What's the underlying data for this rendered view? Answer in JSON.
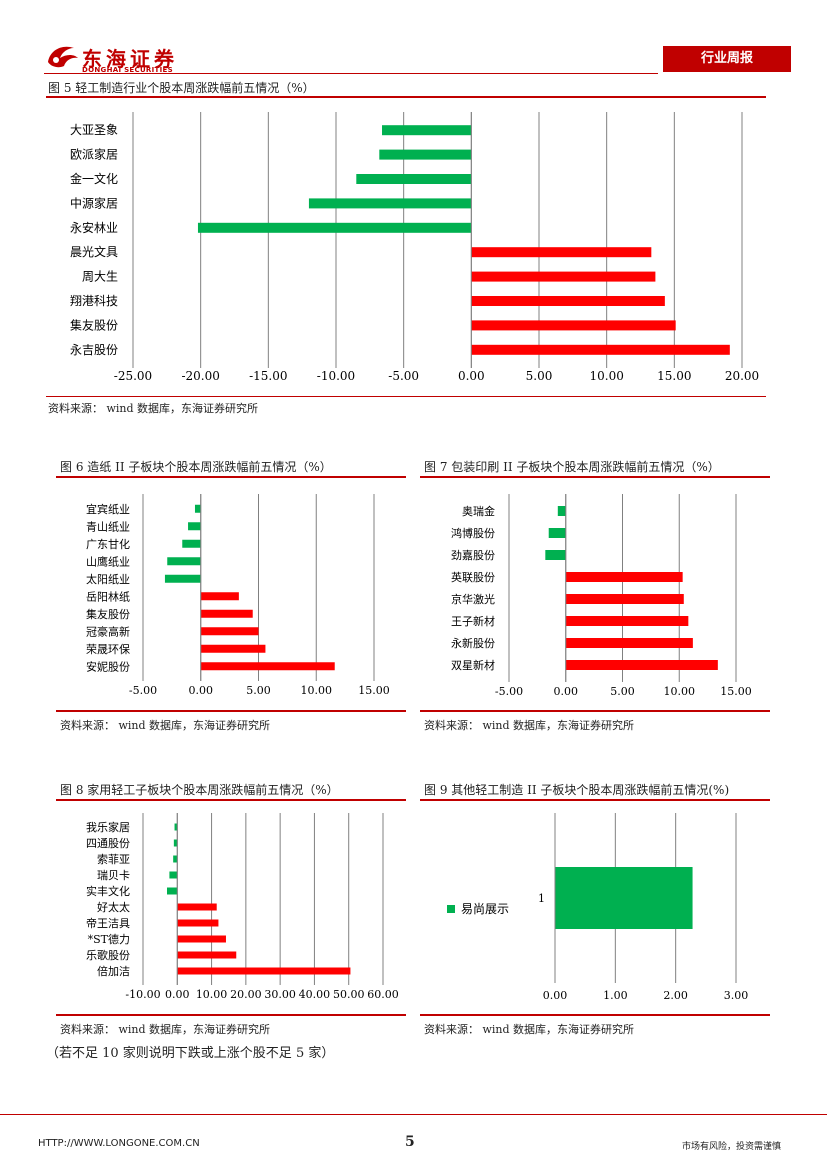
{
  "header": {
    "logo_cn": "东海证券",
    "logo_en": "DONGHAI SECURITIES",
    "report_tag": "行业周报"
  },
  "colors": {
    "brand": "#c00000",
    "up": "#ff0000",
    "down": "#00b050"
  },
  "figures": [
    {
      "title": "图 5   轻工制造行业个股本周涨跌幅前五情况（%）",
      "source": "资料来源：  wind 数据库，东海证券研究所",
      "chart_data": {
        "type": "bar",
        "orientation": "horizontal",
        "categories": [
          "大亚圣象",
          "欧派家居",
          "金一文化",
          "中源家居",
          "永安林业",
          "晨光文具",
          "周大生",
          "翔港科技",
          "集友股份",
          "永吉股份"
        ],
        "values": [
          -6.6,
          -6.8,
          -8.5,
          -12.0,
          -20.2,
          13.3,
          13.6,
          14.3,
          15.1,
          19.1
        ],
        "xlim": [
          -25,
          20
        ],
        "xticks": [
          "-25.00",
          "-20.00",
          "-15.00",
          "-10.00",
          "-5.00",
          "0.00",
          "5.00",
          "10.00",
          "15.00",
          "20.00"
        ],
        "grid": true
      }
    },
    {
      "title": "图 6   造纸 II 子板块个股本周涨跌幅前五情况（%）",
      "source": "资料来源：  wind 数据库，东海证券研究所",
      "chart_data": {
        "type": "bar",
        "orientation": "horizontal",
        "categories": [
          "宜宾纸业",
          "青山纸业",
          "广东甘化",
          "山鹰纸业",
          "太阳纸业",
          "岳阳林纸",
          "集友股份",
          "冠豪高新",
          "荣晟环保",
          "安妮股份"
        ],
        "values": [
          -0.5,
          -1.1,
          -1.6,
          -2.9,
          -3.1,
          3.3,
          4.5,
          5.0,
          5.6,
          11.6
        ],
        "xlim": [
          -5,
          15
        ],
        "xticks": [
          "-5.00",
          "0.00",
          "5.00",
          "10.00",
          "15.00"
        ],
        "grid": true
      }
    },
    {
      "title": "图 7   包装印刷 II 子板块个股本周涨跌幅前五情况（%）",
      "source": "资料来源：  wind 数据库，东海证券研究所",
      "chart_data": {
        "type": "bar",
        "orientation": "horizontal",
        "categories": [
          "奥瑞金",
          "鸿博股份",
          "劲嘉股份",
          "英联股份",
          "京华激光",
          "王子新材",
          "永新股份",
          "双星新材"
        ],
        "values": [
          -0.7,
          -1.5,
          -1.8,
          10.3,
          10.4,
          10.8,
          11.2,
          13.4
        ],
        "xlim": [
          -5,
          15
        ],
        "xticks": [
          "-5.00",
          "0.00",
          "5.00",
          "10.00",
          "15.00"
        ],
        "grid": true
      }
    },
    {
      "title": "图 8 家用轻工子板块个股本周涨跌幅前五情况（%）",
      "source": "资料来源：  wind 数据库，东海证券研究所",
      "chart_data": {
        "type": "bar",
        "orientation": "horizontal",
        "categories": [
          "我乐家居",
          "四通股份",
          "索菲亚",
          "瑞贝卡",
          "实丰文化",
          "好太太",
          "帝王洁具",
          "*ST德力",
          "乐歌股份",
          "倍加洁"
        ],
        "values": [
          -0.8,
          -1.0,
          -1.2,
          -2.3,
          -3.0,
          11.5,
          12.0,
          14.2,
          17.2,
          50.5
        ],
        "xlim": [
          -10,
          60
        ],
        "xticks": [
          "-10.00",
          "0.00",
          "10.00",
          "20.00",
          "30.00",
          "40.00",
          "50.00",
          "60.00"
        ],
        "grid": true
      }
    },
    {
      "title": "图 9 其他轻工制造 II 子板块个股本周涨跌幅前五情况(%)",
      "source": "资料来源：  wind 数据库，东海证券研究所",
      "chart_data": {
        "type": "bar",
        "orientation": "horizontal",
        "categories": [
          "1"
        ],
        "series": [
          {
            "name": "易尚展示",
            "values": [
              2.28
            ]
          }
        ],
        "xlim": [
          0,
          3
        ],
        "xticks": [
          "0.00",
          "1.00",
          "2.00",
          "3.00"
        ],
        "legend": "left",
        "grid": true
      }
    }
  ],
  "note": "（若不足 10 家则说明下跌或上涨个股不足 5 家）",
  "footer": {
    "url": "HTTP://WWW.LONGONE.COM.CN",
    "page": "5",
    "disclaimer": "市场有风险，投资需谨慎"
  }
}
